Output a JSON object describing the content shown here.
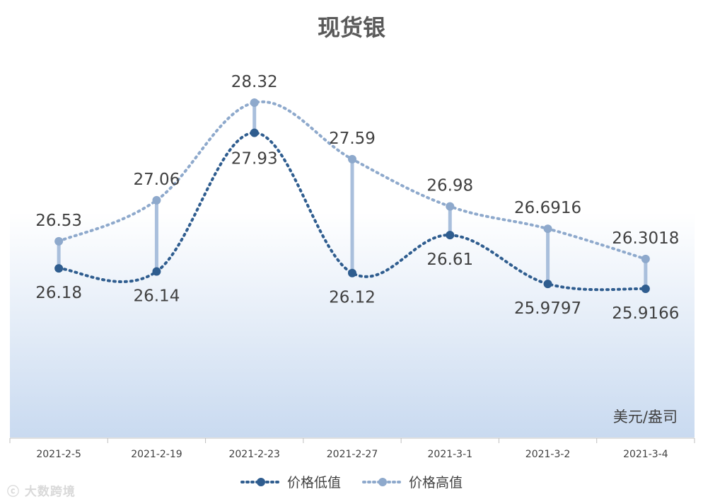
{
  "chart_data": {
    "type": "line",
    "title": "现货银",
    "unit_label": "美元/盎司",
    "categories": [
      "2021-2-5",
      "2021-2-19",
      "2021-2-23",
      "2021-2-27",
      "2021-3-1",
      "2021-3-2",
      "2021-3-4"
    ],
    "series": [
      {
        "name": "价格低值",
        "values": [
          26.18,
          26.14,
          27.93,
          26.12,
          26.61,
          25.9797,
          25.9166
        ],
        "labels": [
          "26.18",
          "26.14",
          "27.93",
          "26.12",
          "26.61",
          "25.9797",
          "25.9166"
        ],
        "color": "#2f5d8f"
      },
      {
        "name": "价格高值",
        "values": [
          26.53,
          27.06,
          28.32,
          27.59,
          26.98,
          26.6916,
          26.3018
        ],
        "labels": [
          "26.53",
          "27.06",
          "28.32",
          "27.59",
          "26.98",
          "26.6916",
          "26.3018"
        ],
        "color": "#8ea9cc"
      }
    ],
    "drop_line_color": "#a9bfdc",
    "background_gradient": [
      "#ffffff",
      "#c9daf0"
    ],
    "grid": false,
    "legend_position": "bottom"
  },
  "watermark": "大数跨境"
}
